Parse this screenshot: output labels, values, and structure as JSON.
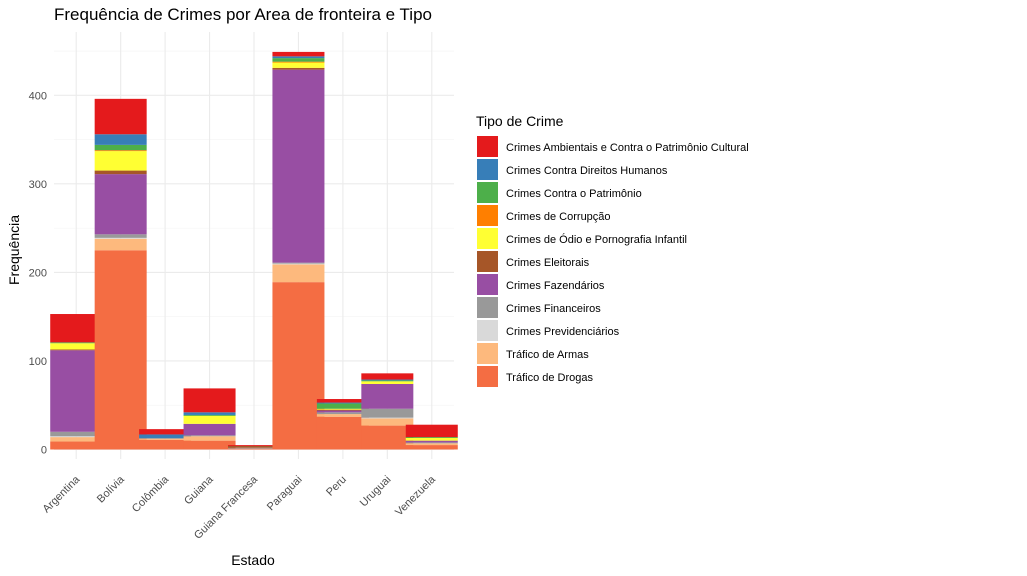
{
  "chart_data": {
    "type": "bar",
    "stacked": true,
    "title": "Frequência de Crimes por Area de fronteira e Tipo",
    "xlabel": "Estado",
    "ylabel": "Frequência",
    "ylim": [
      0,
      470
    ],
    "yticks": [
      0,
      100,
      200,
      300,
      400
    ],
    "grid": true,
    "legend_position": "right",
    "legend_title": "Tipo de Crime",
    "categories": [
      "Argentina",
      "Bolívia",
      "Colômbia",
      "Guiana",
      "Guiana Francesa",
      "Paraguai",
      "Peru",
      "Uruguai",
      "Venezuela"
    ],
    "series": [
      {
        "name": "Crimes Ambientais e Contra o Patrimônio Cultural",
        "color": "#E41A1C",
        "values": [
          32,
          40,
          6,
          27,
          1,
          5,
          4,
          7,
          14
        ]
      },
      {
        "name": "Crimes Contra Direitos Humanos",
        "color": "#377EB8",
        "values": [
          0,
          12,
          4,
          3,
          0,
          2,
          1,
          1,
          0
        ]
      },
      {
        "name": "Crimes Contra o Patrimônio",
        "color": "#4DAF4A",
        "values": [
          1,
          6,
          0,
          1,
          0,
          4,
          6,
          1,
          1
        ]
      },
      {
        "name": "Crimes de Corrupção",
        "color": "#FF7F00",
        "values": [
          0,
          1,
          0,
          0,
          0,
          1,
          0,
          0,
          0
        ]
      },
      {
        "name": "Crimes de Ódio e Pornografia Infantil",
        "color": "#FFFF33",
        "values": [
          7,
          22,
          0,
          9,
          0,
          6,
          1,
          3,
          3
        ]
      },
      {
        "name": "Crimes Eleitorais",
        "color": "#A65628",
        "values": [
          1,
          4,
          0,
          0,
          2,
          2,
          1,
          0,
          0
        ]
      },
      {
        "name": "Crimes Fazendários",
        "color": "#984EA3",
        "values": [
          92,
          68,
          0,
          13,
          0,
          218,
          2,
          28,
          2
        ]
      },
      {
        "name": "Crimes Financeiros",
        "color": "#999999",
        "values": [
          5,
          4,
          1,
          1,
          1,
          1,
          2,
          10,
          1
        ]
      },
      {
        "name": "Crimes Previdenciários",
        "color": "#D9D9D9",
        "values": [
          1,
          1,
          0,
          0,
          0,
          1,
          0,
          1,
          0
        ]
      },
      {
        "name": "Tráfico de Armas",
        "color": "#FDB97D",
        "values": [
          5,
          13,
          1,
          5,
          0,
          20,
          3,
          8,
          2
        ]
      },
      {
        "name": "Tráfico de Drogas",
        "color": "#F46D43",
        "values": [
          9,
          225,
          11,
          10,
          1,
          189,
          37,
          27,
          5
        ]
      }
    ]
  }
}
